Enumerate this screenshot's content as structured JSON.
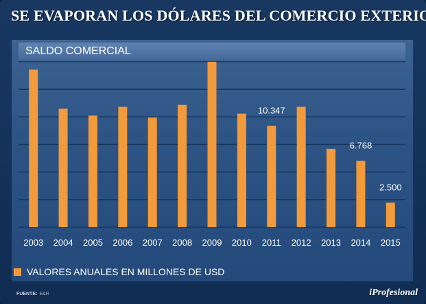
{
  "header": {
    "title": "SE EVAPORAN LOS DÓLARES DEL COMERCIO EXTERIOR"
  },
  "chart_header": {
    "label": "SALDO COMERCIAL"
  },
  "legend": {
    "label": "VALORES ANUALES EN MILLONES DE USD",
    "color": "#f39a3a"
  },
  "footer": {
    "source_label": "FUENTE:",
    "source_value": "E&R",
    "brand": "iProfesional"
  },
  "chart_data": {
    "type": "bar",
    "title": "SALDO COMERCIAL",
    "categories": [
      "2003",
      "2004",
      "2005",
      "2006",
      "2007",
      "2008",
      "2009",
      "2010",
      "2011",
      "2012",
      "2013",
      "2014",
      "2015"
    ],
    "values": [
      16100,
      12100,
      11400,
      12300,
      11200,
      12500,
      16900,
      11600,
      10347,
      12300,
      8000,
      6768,
      2500
    ],
    "data_labels": {
      "2011": "10.347",
      "2014": "6.768",
      "2015": "2.500"
    },
    "ylim": [
      0,
      16900
    ],
    "xlabel": "",
    "ylabel": "",
    "grid": true,
    "series_name": "VALORES ANUALES EN MILLONES DE USD",
    "bar_color": "#f39a3a"
  }
}
